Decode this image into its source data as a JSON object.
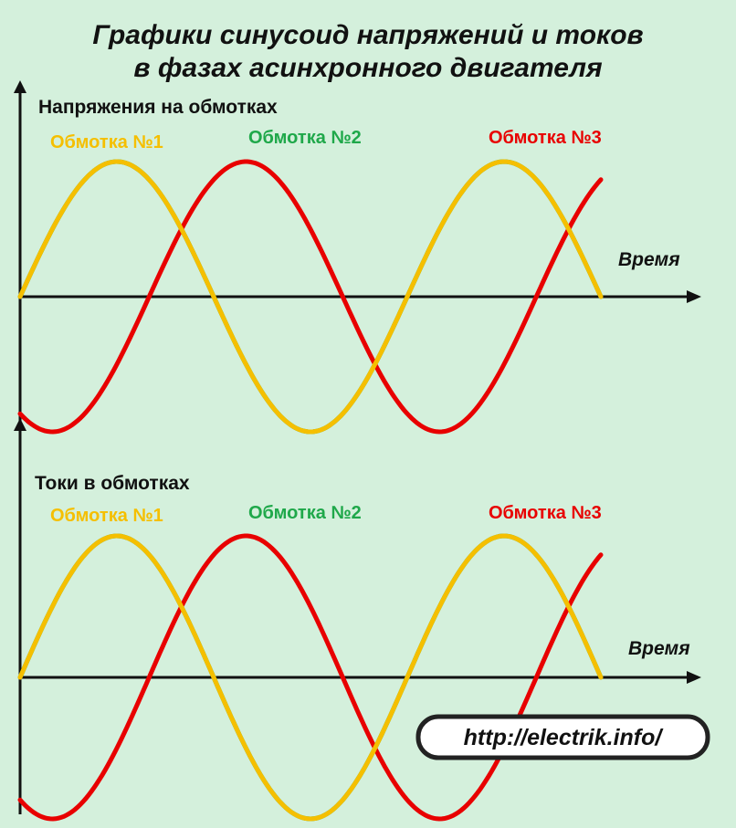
{
  "header": {
    "title_line1": "Графики синусоид напряжений и токов",
    "title_line2": "в фазах асинхронного двигателя"
  },
  "panels": [
    {
      "heading": "Напряжения на обмотках",
      "labels": [
        "Обмотка №1",
        "Обмотка №2",
        "Обмотка №3"
      ],
      "axis_label": "Время"
    },
    {
      "heading": "Токи в обмотках",
      "labels": [
        "Обмотка №1",
        "Обмотка №2",
        "Обмотка №3"
      ],
      "axis_label": "Время"
    }
  ],
  "footer": {
    "url": "http://electrik.info/"
  }
}
